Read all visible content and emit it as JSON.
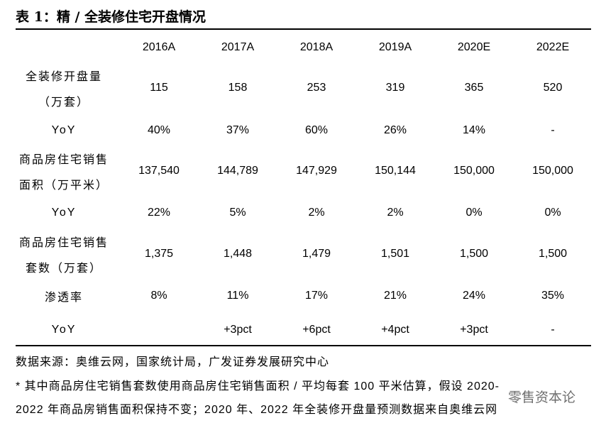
{
  "header": {
    "title": "表 1：精 / 全装修住宅开盘情况"
  },
  "table": {
    "columns": [
      "2016A",
      "2017A",
      "2018A",
      "2019A",
      "2020E",
      "2022E"
    ],
    "rows": [
      {
        "label": [
          "全装修开盘量",
          "（万套）"
        ],
        "cells": [
          "115",
          "158",
          "253",
          "319",
          "365",
          "520"
        ]
      },
      {
        "label": [
          "YoY"
        ],
        "cells": [
          "40%",
          "37%",
          "60%",
          "26%",
          "14%",
          "-"
        ]
      },
      {
        "label": [
          "商品房住宅销售",
          "面积（万平米）"
        ],
        "cells": [
          "137,540",
          "144,789",
          "147,929",
          "150,144",
          "150,000",
          "150,000"
        ]
      },
      {
        "label": [
          "YoY"
        ],
        "cells": [
          "22%",
          "5%",
          "2%",
          "2%",
          "0%",
          "0%"
        ]
      },
      {
        "label": [
          "商品房住宅销售",
          "套数（万套）"
        ],
        "cells": [
          "1,375",
          "1,448",
          "1,479",
          "1,501",
          "1,500",
          "1,500"
        ]
      },
      {
        "label": [
          "渗透率"
        ],
        "cells": [
          "8%",
          "11%",
          "17%",
          "21%",
          "24%",
          "35%"
        ]
      },
      {
        "label": [
          "YoY"
        ],
        "cells": [
          "",
          "+3pct",
          "+6pct",
          "+4pct",
          "+3pct",
          "-"
        ]
      }
    ]
  },
  "footer": {
    "source": "数据来源：奥维云网，国家统计局，广发证券发展研究中心",
    "notes": [
      "*  其中商品房住宅销售套数使用商品房住宅销售面积 / 平均每套 100 平米估算，假设 2020-",
      "2022 年商品房销售面积保持不变；2020 年、2022 年全装修开盘量预测数据来自奥维云网"
    ],
    "watermark": "零售资本论"
  }
}
